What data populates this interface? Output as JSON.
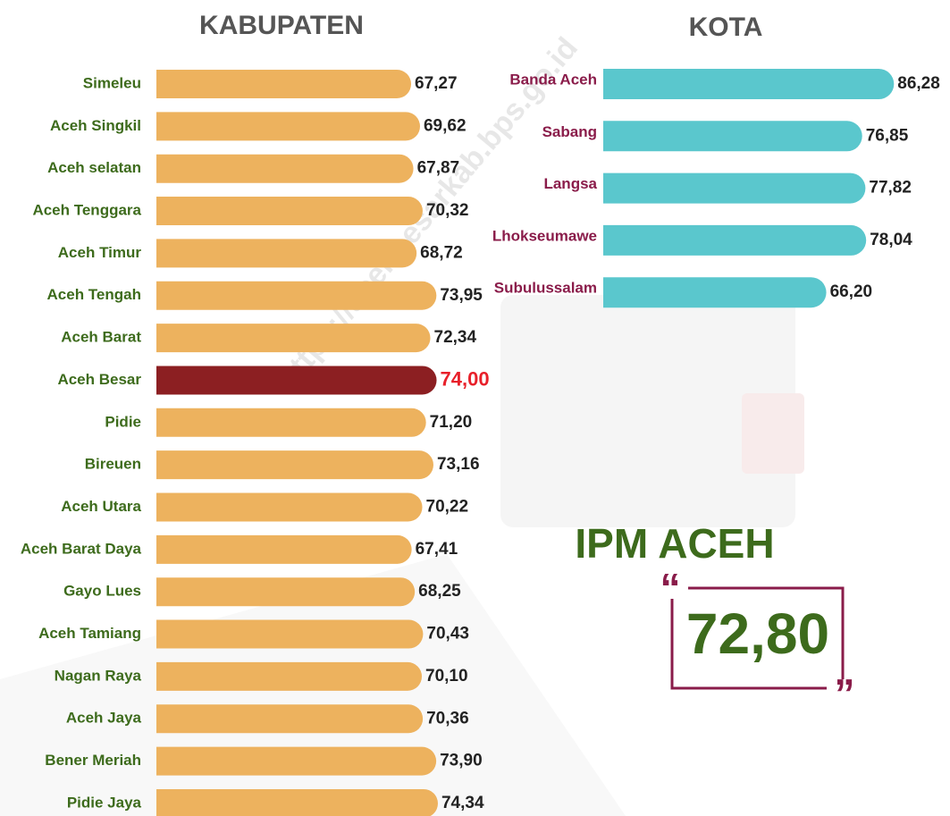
{
  "chart_data": [
    {
      "type": "bar",
      "orientation": "horizontal",
      "title": "KABUPATEN",
      "categories": [
        "Simeleu",
        "Aceh Singkil",
        "Aceh selatan",
        "Aceh Tenggara",
        "Aceh Timur",
        "Aceh Tengah",
        "Aceh Barat",
        "Aceh Besar",
        "Pidie",
        "Bireuen",
        "Aceh Utara",
        "Aceh Barat Daya",
        "Gayo Lues",
        "Aceh Tamiang",
        "Nagan Raya",
        "Aceh Jaya",
        "Bener Meriah",
        "Pidie Jaya"
      ],
      "values": [
        67.27,
        69.62,
        67.87,
        70.32,
        68.72,
        73.95,
        72.34,
        74.0,
        71.2,
        73.16,
        70.22,
        67.41,
        68.25,
        70.43,
        70.1,
        70.36,
        73.9,
        74.34
      ],
      "value_labels": [
        "67,27",
        "69,62",
        "67,87",
        "70,32",
        "68,72",
        "73,95",
        "72,34",
        "74,00",
        "71,20",
        "73,16",
        "70,22",
        "67,41",
        "68,25",
        "70,43",
        "70,10",
        "70,36",
        "73,90",
        "74,34"
      ],
      "colors": [
        "#edb25e",
        "#edb25e",
        "#edb25e",
        "#edb25e",
        "#edb25e",
        "#edb25e",
        "#edb25e",
        "#8c1f22",
        "#edb25e",
        "#edb25e",
        "#edb25e",
        "#edb25e",
        "#edb25e",
        "#edb25e",
        "#edb25e",
        "#edb25e",
        "#edb25e",
        "#edb25e"
      ],
      "label_colors": [
        "#222",
        "#222",
        "#222",
        "#222",
        "#222",
        "#222",
        "#222",
        "#e8202a",
        "#222",
        "#222",
        "#222",
        "#222",
        "#222",
        "#222",
        "#222",
        "#222",
        "#222",
        "#222"
      ],
      "category_color": "#3d6b1c"
    },
    {
      "type": "bar",
      "orientation": "horizontal",
      "title": "KOTA",
      "categories": [
        "Banda Aceh",
        "Sabang",
        "Langsa",
        "Lhokseumawe",
        "Subulussalam"
      ],
      "values": [
        86.28,
        76.85,
        77.82,
        78.04,
        66.2
      ],
      "value_labels": [
        "86,28",
        "76,85",
        "77,82",
        "78,04",
        "66,20"
      ],
      "colors": [
        "#5ac7cd",
        "#5ac7cd",
        "#5ac7cd",
        "#5ac7cd",
        "#5ac7cd"
      ],
      "label_colors": [
        "#222",
        "#222",
        "#222",
        "#222",
        "#222"
      ],
      "category_color": "#8a1c4a"
    }
  ],
  "ipm": {
    "title": "IPM ACEH",
    "value": "72,80"
  },
  "watermark": "https://acehbesarkab.bps.go.id"
}
